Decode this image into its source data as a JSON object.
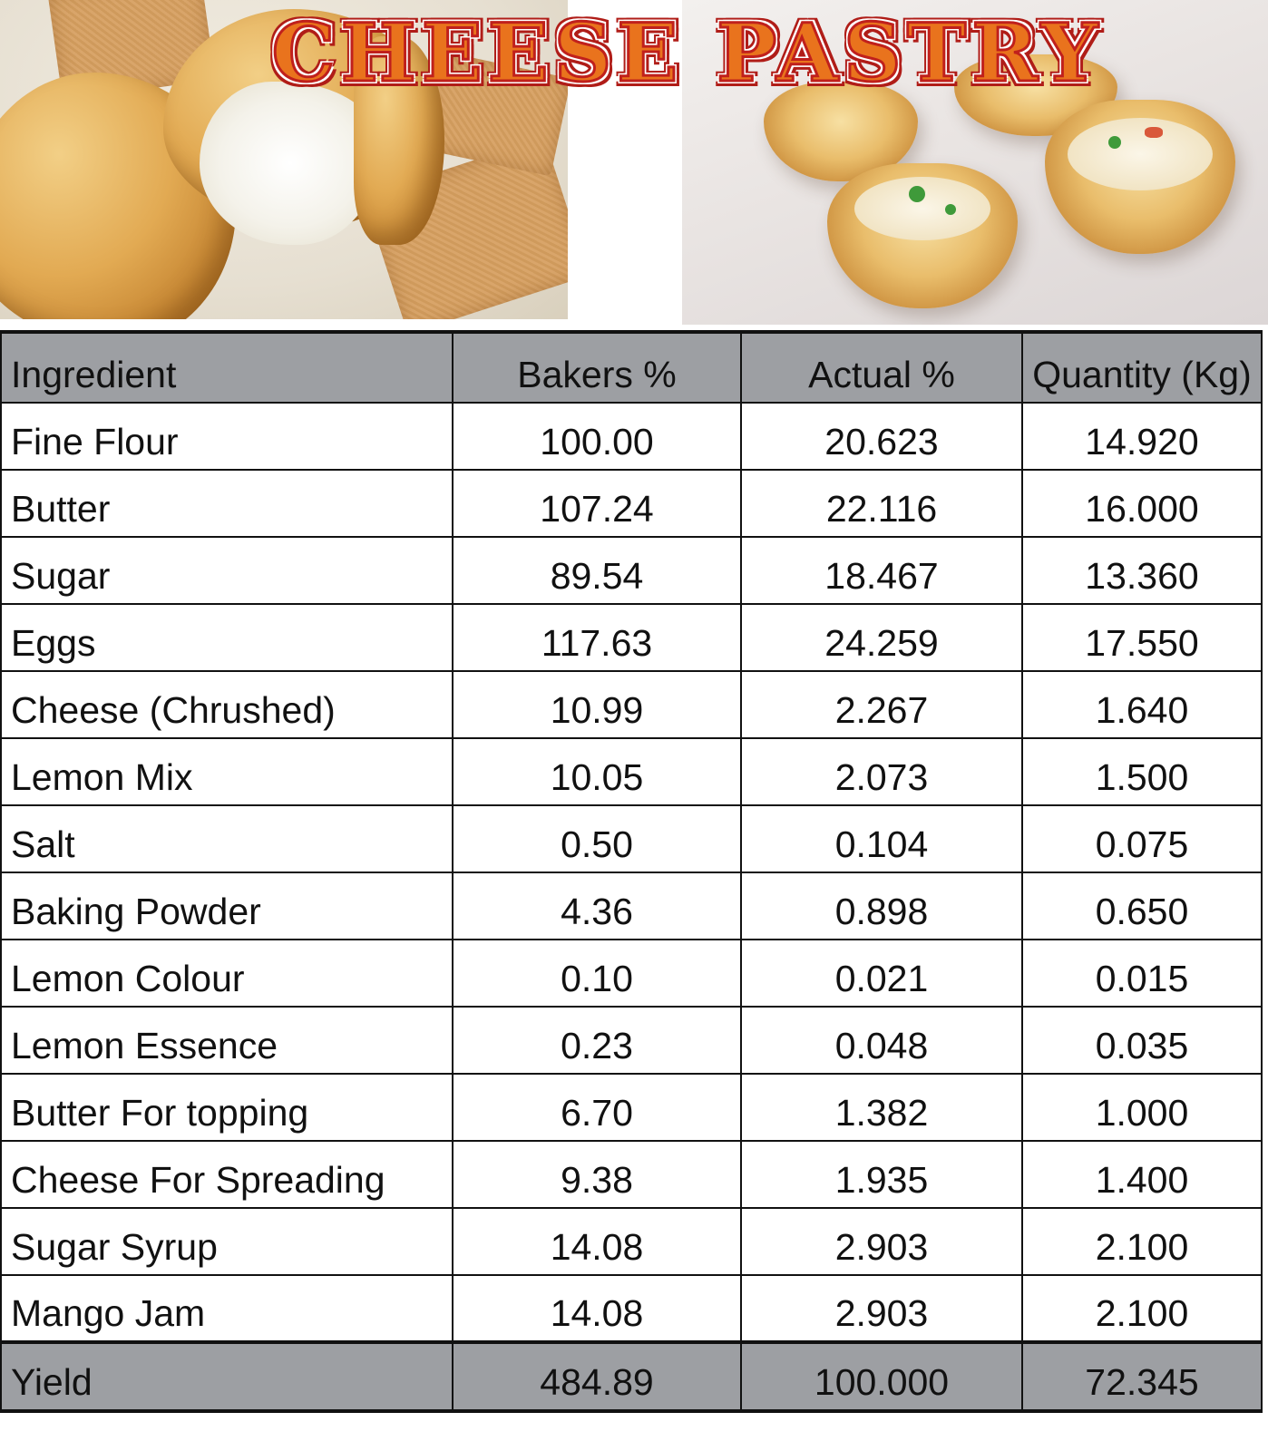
{
  "title": "CHEESE PASTRY",
  "table": {
    "headers": [
      "Ingredient",
      "Bakers %",
      "Actual %",
      "Quantity (Kg)"
    ],
    "rows": [
      [
        "Fine Flour",
        "100.00",
        "20.623",
        "14.920"
      ],
      [
        "Butter",
        "107.24",
        "22.116",
        "16.000"
      ],
      [
        "Sugar",
        "89.54",
        "18.467",
        "13.360"
      ],
      [
        "Eggs",
        "117.63",
        "24.259",
        "17.550"
      ],
      [
        "Cheese (Chrushed)",
        "10.99",
        "2.267",
        "1.640"
      ],
      [
        "Lemon Mix",
        "10.05",
        "2.073",
        "1.500"
      ],
      [
        "Salt",
        "0.50",
        "0.104",
        "0.075"
      ],
      [
        "Baking Powder",
        "4.36",
        "0.898",
        "0.650"
      ],
      [
        "Lemon Colour",
        "0.10",
        "0.021",
        "0.015"
      ],
      [
        "Lemon Essence",
        "0.23",
        "0.048",
        "0.035"
      ],
      [
        "Butter For topping",
        "6.70",
        "1.382",
        "1.000"
      ],
      [
        "Cheese For Spreading",
        "9.38",
        "1.935",
        "1.400"
      ],
      [
        "Sugar Syrup",
        "14.08",
        "2.903",
        "2.100"
      ],
      [
        "Mango Jam",
        "14.08",
        "2.903",
        "2.100"
      ]
    ],
    "footer": [
      "Yield",
      "484.89",
      "100.000",
      "72.345"
    ]
  },
  "colors": {
    "header_bg": "#9d9fa3",
    "title_fill": "#e9731d",
    "title_outline": "#c0201c"
  },
  "images": {
    "left": "cheese-pastry-roll-photo",
    "right": "pastry-tartlets-photo"
  }
}
